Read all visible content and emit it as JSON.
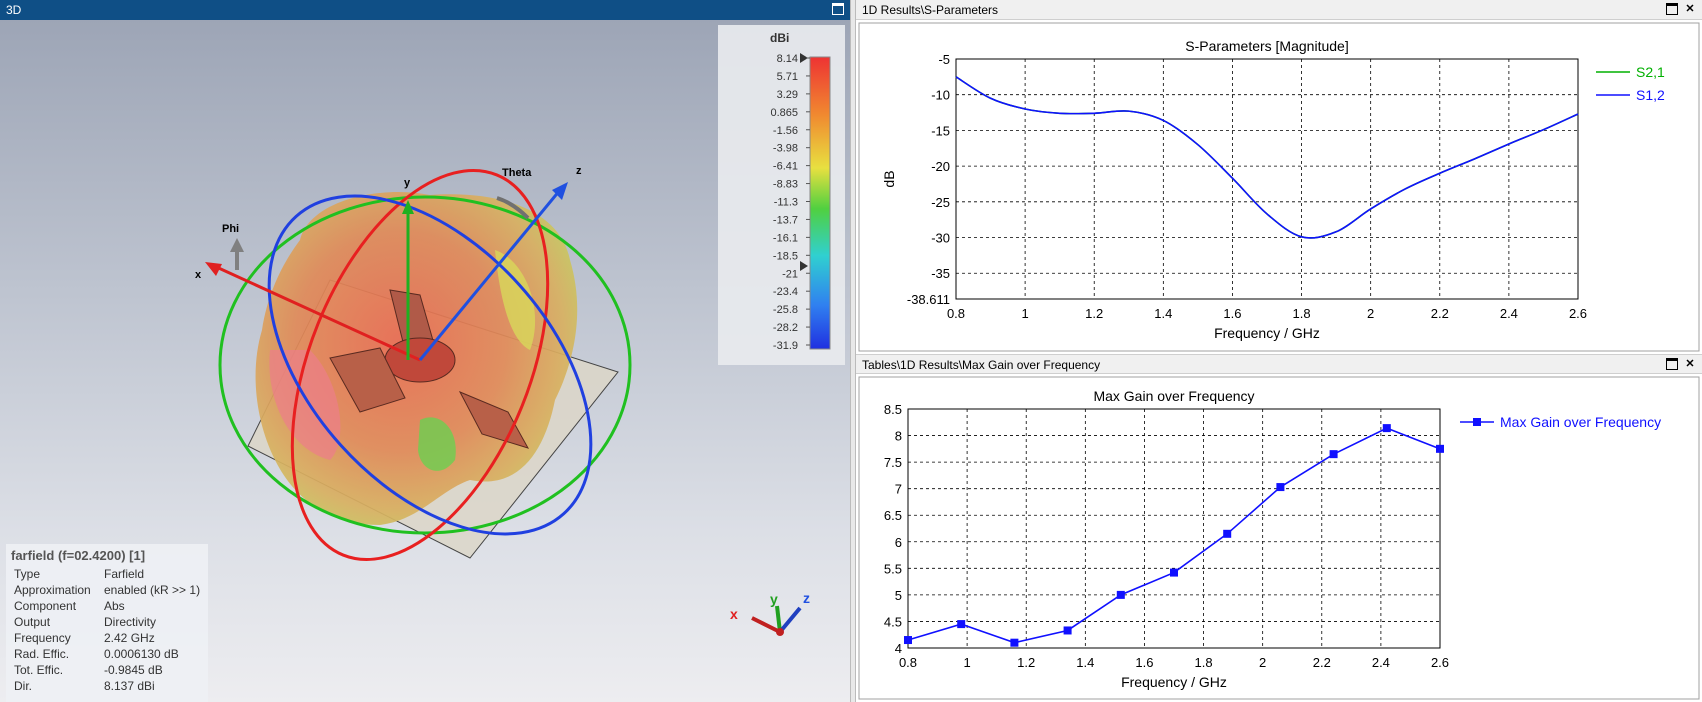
{
  "panel3d": {
    "title": "3D",
    "legend": {
      "unit": "dBi",
      "ticks": [
        "8.14",
        "5.71",
        "3.29",
        "0.865",
        "-1.56",
        "-3.98",
        "-6.41",
        "-8.83",
        "-11.3",
        "-13.7",
        "-16.1",
        "-18.5",
        "-21",
        "-23.4",
        "-25.8",
        "-28.2",
        "-31.9"
      ]
    },
    "axes": {
      "x": "x",
      "y": "y",
      "z": "z",
      "phi": "Phi",
      "theta": "Theta"
    },
    "info": {
      "title": "farfield (f=02.4200) [1]",
      "rows": [
        {
          "k": "Type",
          "v": "Farfield"
        },
        {
          "k": "Approximation",
          "v": "enabled (kR >> 1)"
        },
        {
          "k": "Component",
          "v": "Abs"
        },
        {
          "k": "Output",
          "v": "Directivity"
        },
        {
          "k": "Frequency",
          "v": "2.42 GHz"
        },
        {
          "k": "Rad. Effic.",
          "v": "0.0006130 dB"
        },
        {
          "k": "Tot. Effic.",
          "v": "-0.9845 dB"
        },
        {
          "k": "Dir.",
          "v": "8.137 dBi"
        }
      ]
    },
    "triad": {
      "x": "x",
      "y": "y",
      "z": "z"
    }
  },
  "sparam": {
    "title": "1D Results\\S-Parameters",
    "chart_data": {
      "type": "line",
      "title": "S-Parameters [Magnitude]",
      "xlabel": "Frequency / GHz",
      "ylabel": "dB",
      "xlim": [
        0.8,
        2.6
      ],
      "ylim": [
        -38.611,
        -5
      ],
      "xticks": [
        "0.8",
        "1",
        "1.2",
        "1.4",
        "1.6",
        "1.8",
        "2",
        "2.2",
        "2.4",
        "2.6"
      ],
      "yticks": [
        "-5",
        "-10",
        "-15",
        "-20",
        "-25",
        "-30",
        "-35",
        "-38.611"
      ],
      "grid": true,
      "legend": "top-right",
      "series": [
        {
          "name": "S2,1",
          "color": "#00b000",
          "x": [
            0.8,
            0.9,
            1.0,
            1.1,
            1.2,
            1.3,
            1.4,
            1.5,
            1.6,
            1.7,
            1.8,
            1.9,
            2.0,
            2.1,
            2.2,
            2.3,
            2.4,
            2.5,
            2.6
          ],
          "y": [
            -7.5,
            -10.5,
            -12.0,
            -12.6,
            -12.6,
            -12.3,
            -13.6,
            -17.0,
            -21.7,
            -26.7,
            -29.9,
            -29.2,
            -26.0,
            -23.2,
            -21.0,
            -19.0,
            -16.9,
            -14.9,
            -12.7
          ]
        },
        {
          "name": "S1,2",
          "color": "#1010ff",
          "x": [
            0.8,
            0.9,
            1.0,
            1.1,
            1.2,
            1.3,
            1.4,
            1.5,
            1.6,
            1.7,
            1.8,
            1.9,
            2.0,
            2.1,
            2.2,
            2.3,
            2.4,
            2.5,
            2.6
          ],
          "y": [
            -7.5,
            -10.5,
            -12.0,
            -12.6,
            -12.6,
            -12.3,
            -13.6,
            -17.0,
            -21.7,
            -26.7,
            -29.9,
            -29.2,
            -26.0,
            -23.2,
            -21.0,
            -19.0,
            -16.9,
            -14.9,
            -12.7
          ]
        }
      ]
    }
  },
  "maxgain": {
    "title": "Tables\\1D Results\\Max Gain over Frequency",
    "chart_data": {
      "type": "line",
      "title": "Max Gain over Frequency",
      "xlabel": "Frequency / GHz",
      "ylabel": "",
      "xlim": [
        0.8,
        2.6
      ],
      "ylim": [
        4,
        8.5
      ],
      "xticks": [
        "0.8",
        "1",
        "1.2",
        "1.4",
        "1.6",
        "1.8",
        "2",
        "2.2",
        "2.4",
        "2.6"
      ],
      "yticks": [
        "8.5",
        "8",
        "7.5",
        "7",
        "6.5",
        "6",
        "5.5",
        "5",
        "4.5",
        "4"
      ],
      "grid": true,
      "legend": "top-right",
      "series": [
        {
          "name": "Max Gain over Frequency",
          "color": "#1010ff",
          "x": [
            0.8,
            0.98,
            1.16,
            1.34,
            1.52,
            1.7,
            1.88,
            2.06,
            2.24,
            2.42,
            2.6
          ],
          "y": [
            4.15,
            4.45,
            4.1,
            4.33,
            5.0,
            5.42,
            6.15,
            7.03,
            7.65,
            8.14,
            7.75
          ]
        }
      ]
    }
  }
}
